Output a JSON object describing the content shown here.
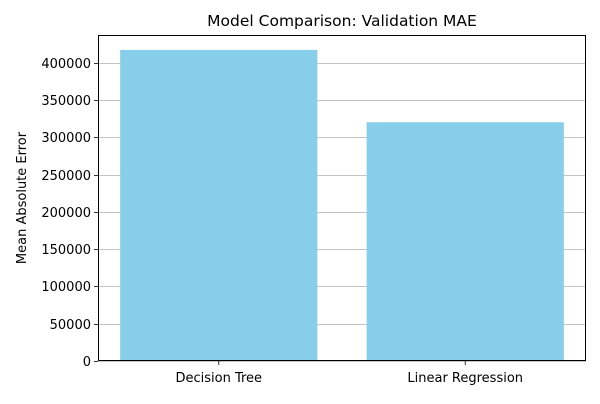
{
  "chart_data": {
    "type": "bar",
    "title": "Model Comparison: Validation MAE",
    "xlabel": "",
    "ylabel": "Mean Absolute Error",
    "categories": [
      "Decision Tree",
      "Linear Regression"
    ],
    "values": [
      417000,
      320000
    ],
    "ylim": [
      0,
      437000
    ],
    "yticks": [
      0,
      50000,
      100000,
      150000,
      200000,
      250000,
      300000,
      350000,
      400000
    ],
    "ytick_labels": [
      "0",
      "50000",
      "100000",
      "150000",
      "200000",
      "250000",
      "300000",
      "350000",
      "400000"
    ],
    "grid": "y-major",
    "legend": "none",
    "colors": {
      "bar": "#87ceeb",
      "grid": "#b0b0b0",
      "axis": "#000000"
    }
  }
}
